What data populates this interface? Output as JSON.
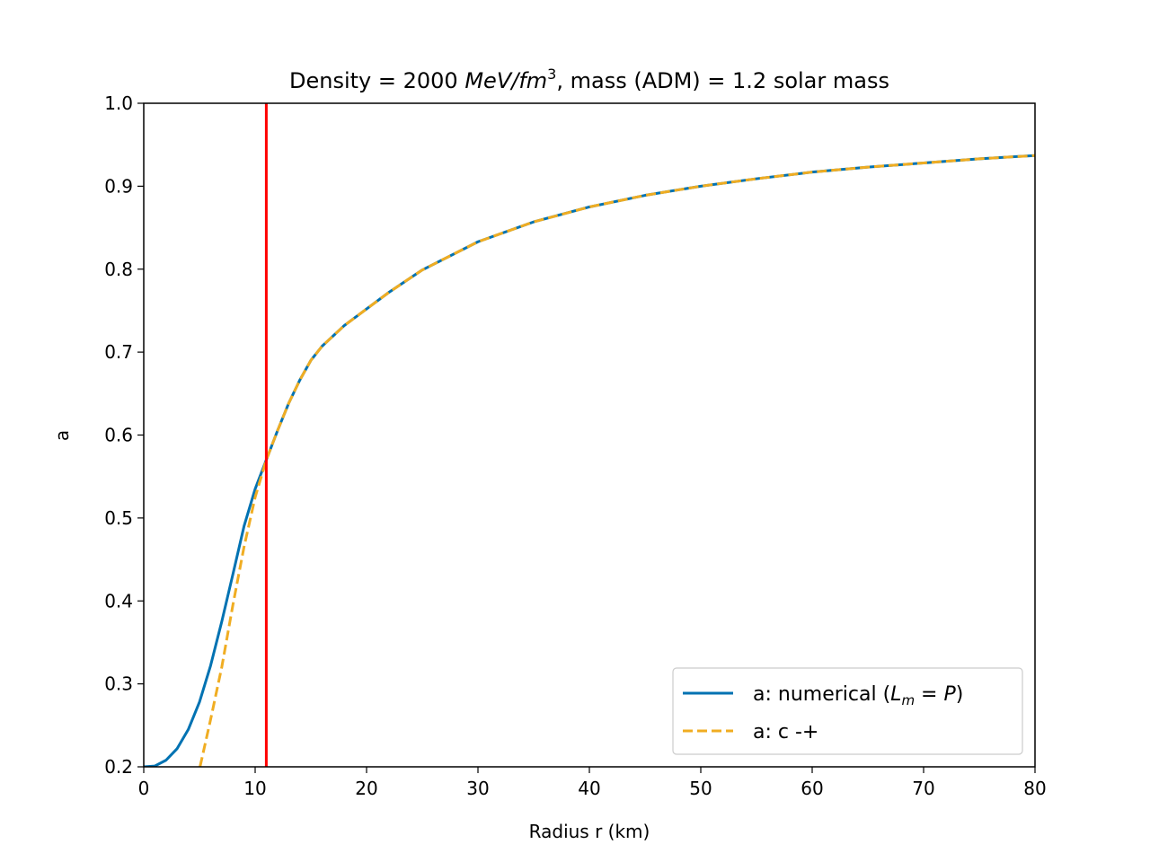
{
  "colors": {
    "numerical": "#0072b2",
    "approx": "#f0ad22",
    "marker": "#ff0000",
    "axes": "#000000",
    "background": "#ffffff"
  },
  "chart_data": {
    "type": "line",
    "title": {
      "prefix": "Density = 2000 ",
      "unit_main": "MeV/fm",
      "unit_exp": "3",
      "suffix": ", mass (ADM) = 1.2 solar mass"
    },
    "xlabel": "Radius r (km)",
    "ylabel": "a",
    "xlim": [
      0,
      80
    ],
    "ylim": [
      0.2,
      1.0
    ],
    "xticks": [
      0,
      10,
      20,
      30,
      40,
      50,
      60,
      70,
      80
    ],
    "xtick_labels": [
      "0",
      "10",
      "20",
      "30",
      "40",
      "50",
      "60",
      "70",
      "80"
    ],
    "yticks": [
      0.2,
      0.3,
      0.4,
      0.5,
      0.6,
      0.7,
      0.8,
      0.9,
      1.0
    ],
    "ytick_labels": [
      "0.2",
      "0.3",
      "0.4",
      "0.5",
      "0.6",
      "0.7",
      "0.8",
      "0.9",
      "1.0"
    ],
    "grid": false,
    "legend_position": "lower-right",
    "vertical_line": {
      "x": 11.0
    },
    "series": [
      {
        "key": "numerical",
        "legend_prefix": "a: numerical (",
        "legend_math": "L",
        "legend_sub": "m",
        "legend_rest": " = P",
        "legend_suffix": ")",
        "style": "solid",
        "x": [
          0,
          1,
          2,
          3,
          4,
          5,
          6,
          7,
          8,
          9,
          10,
          11,
          12,
          13,
          14,
          15,
          16,
          18,
          20,
          22,
          25,
          30,
          35,
          40,
          45,
          50,
          55,
          60,
          65,
          70,
          75,
          80
        ],
        "y": [
          0.2,
          0.201,
          0.208,
          0.222,
          0.245,
          0.278,
          0.322,
          0.375,
          0.432,
          0.49,
          0.535,
          0.57,
          0.605,
          0.638,
          0.666,
          0.69,
          0.707,
          0.732,
          0.752,
          0.772,
          0.799,
          0.833,
          0.857,
          0.875,
          0.889,
          0.9,
          0.909,
          0.917,
          0.923,
          0.928,
          0.933,
          0.937
        ]
      },
      {
        "key": "approx",
        "legend_prefix": "a: c -+",
        "style": "dashed",
        "x": [
          5.05,
          6,
          7,
          8,
          9,
          10,
          11,
          12,
          13,
          14,
          15,
          16,
          18,
          20,
          22,
          25,
          30,
          35,
          40,
          45,
          50,
          55,
          60,
          65,
          70,
          75,
          80
        ],
        "y": [
          0.2,
          0.257,
          0.32,
          0.395,
          0.465,
          0.525,
          0.57,
          0.605,
          0.638,
          0.666,
          0.69,
          0.707,
          0.732,
          0.752,
          0.772,
          0.799,
          0.833,
          0.857,
          0.875,
          0.889,
          0.9,
          0.909,
          0.917,
          0.923,
          0.928,
          0.933,
          0.937
        ]
      }
    ]
  }
}
